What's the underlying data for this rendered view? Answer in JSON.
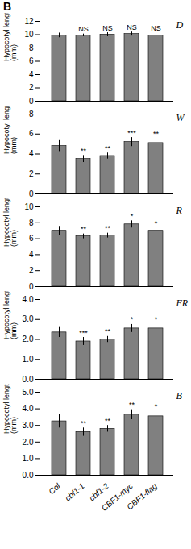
{
  "title": "B",
  "chart_data": [
    {
      "type": "bar",
      "title": "D",
      "ylabel": "Hypocotyl length\n(mm)",
      "categories": [
        "Col",
        "cbf1-1",
        "cbf1-2",
        "CBF1-myc",
        "CBF1-flag"
      ],
      "values": [
        9.9,
        9.9,
        10.0,
        10.1,
        9.9
      ],
      "errors": [
        0.35,
        0.2,
        0.3,
        0.3,
        0.35
      ],
      "annotations": [
        null,
        "NS",
        "NS",
        "NS",
        "NS"
      ],
      "color": "#808080",
      "ylim": [
        0,
        12
      ],
      "yticks": [
        0,
        2,
        4,
        6,
        8,
        10,
        12
      ],
      "grid": false,
      "tick_labels": "y"
    },
    {
      "type": "bar",
      "title": "W",
      "ylabel": "Hypocotyl length\n(mm)",
      "categories": [
        "Col",
        "cbf1-1",
        "cbf1-2",
        "CBF1-myc",
        "CBF1-flag"
      ],
      "values": [
        4.8,
        3.5,
        3.8,
        5.2,
        5.1
      ],
      "errors": [
        0.55,
        0.35,
        0.3,
        0.45,
        0.4
      ],
      "annotations": [
        null,
        "**",
        "**",
        "***",
        "**"
      ],
      "color": "#808080",
      "ylim": [
        0,
        8
      ],
      "yticks": [
        0,
        2,
        4,
        6,
        8
      ],
      "grid": false,
      "tick_labels": "y"
    },
    {
      "type": "bar",
      "title": "R",
      "ylabel": "Hypocotyl length\n(mm)",
      "categories": [
        "Col",
        "cbf1-1",
        "cbf1-2",
        "CBF1-myc",
        "CBF1-flag"
      ],
      "values": [
        7.0,
        6.3,
        6.4,
        7.8,
        7.0
      ],
      "errors": [
        0.55,
        0.3,
        0.3,
        0.45,
        0.35
      ],
      "annotations": [
        null,
        "**",
        "**",
        "*",
        "*"
      ],
      "color": "#808080",
      "ylim": [
        0,
        10
      ],
      "yticks": [
        0,
        2,
        4,
        6,
        8,
        10
      ],
      "grid": false,
      "tick_labels": "y"
    },
    {
      "type": "bar",
      "title": "FR",
      "ylabel": "Hypocotyl length\n(mm)",
      "categories": [
        "Col",
        "cbf1-1",
        "cbf1-2",
        "CBF1-myc",
        "CBF1-flag"
      ],
      "values": [
        2.35,
        1.9,
        2.0,
        2.55,
        2.55
      ],
      "errors": [
        0.25,
        0.2,
        0.15,
        0.2,
        0.2
      ],
      "annotations": [
        null,
        "***",
        "**",
        "*",
        "*"
      ],
      "color": "#808080",
      "ylim": [
        0,
        4
      ],
      "yticks": [
        0,
        1,
        2,
        3,
        4
      ],
      "grid": false,
      "tick_labels": "y"
    },
    {
      "type": "bar",
      "title": "B",
      "ylabel": "Hypocotyl length\n(mm)",
      "categories": [
        "Col",
        "cbf1-1",
        "cbf1-2",
        "CBF1-myc",
        "CBF1-flag"
      ],
      "values": [
        3.25,
        2.6,
        2.8,
        3.65,
        3.55
      ],
      "errors": [
        0.4,
        0.25,
        0.2,
        0.3,
        0.3
      ],
      "annotations": [
        null,
        "**",
        "**",
        "**",
        "*"
      ],
      "color": "#808080",
      "ylim": [
        0,
        5
      ],
      "yticks": [
        0,
        1,
        2,
        3,
        4,
        5
      ],
      "grid": false
    }
  ]
}
